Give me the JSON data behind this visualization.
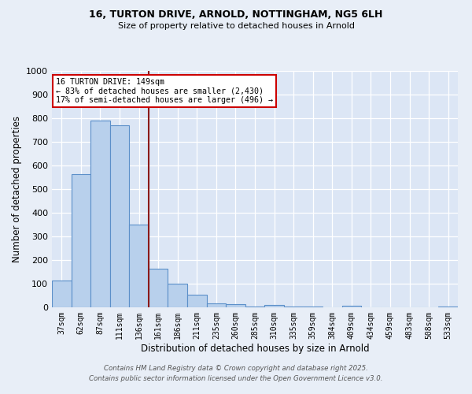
{
  "title_line1": "16, TURTON DRIVE, ARNOLD, NOTTINGHAM, NG5 6LH",
  "title_line2": "Size of property relative to detached houses in Arnold",
  "xlabel": "Distribution of detached houses by size in Arnold",
  "ylabel": "Number of detached properties",
  "categories": [
    "37sqm",
    "62sqm",
    "87sqm",
    "111sqm",
    "136sqm",
    "161sqm",
    "186sqm",
    "211sqm",
    "235sqm",
    "260sqm",
    "285sqm",
    "310sqm",
    "335sqm",
    "359sqm",
    "384sqm",
    "409sqm",
    "434sqm",
    "459sqm",
    "483sqm",
    "508sqm",
    "533sqm"
  ],
  "values": [
    115,
    565,
    790,
    770,
    350,
    165,
    100,
    55,
    18,
    12,
    5,
    10,
    5,
    2,
    0,
    8,
    0,
    0,
    0,
    0,
    5
  ],
  "bar_color": "#b8d0ec",
  "bar_edge_color": "#5b8fc9",
  "vline_x_idx": 4.5,
  "vline_color": "#8b1a1a",
  "annotation_text": "16 TURTON DRIVE: 149sqm\n← 83% of detached houses are smaller (2,430)\n17% of semi-detached houses are larger (496) →",
  "annotation_box_facecolor": "#ffffff",
  "annotation_box_edgecolor": "#cc0000",
  "ylim": [
    0,
    1000
  ],
  "yticks": [
    0,
    100,
    200,
    300,
    400,
    500,
    600,
    700,
    800,
    900,
    1000
  ],
  "bg_color": "#dce6f5",
  "grid_color": "#ffffff",
  "fig_bg_color": "#e8eef7",
  "footer_line1": "Contains HM Land Registry data © Crown copyright and database right 2025.",
  "footer_line2": "Contains public sector information licensed under the Open Government Licence v3.0."
}
